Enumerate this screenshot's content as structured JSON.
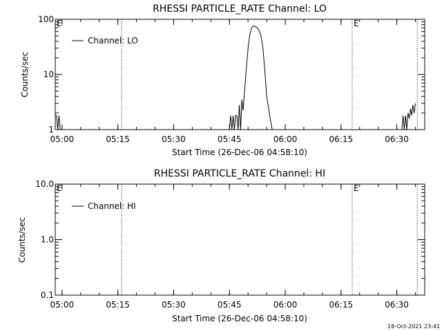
{
  "footer_timestamp": "18-Oct-2021 23:41",
  "chart_data": [
    {
      "type": "line",
      "title": "RHESSI PARTICLE_RATE Channel: LO",
      "xlabel": "Start Time (26-Dec-06 04:58:10)",
      "ylabel": "Counts/sec",
      "yscale": "log",
      "ylim": [
        1,
        100
      ],
      "xlim": [
        "04:58:10",
        "06:37:30"
      ],
      "grid": false,
      "legend_placement": "top-left",
      "x_ticks": [
        "05:00",
        "05:15",
        "05:30",
        "05:45",
        "06:00",
        "06:15",
        "06:30"
      ],
      "y_ticks": [
        "1",
        "10",
        "100"
      ],
      "annotations": [
        {
          "text": "E",
          "x": "04:58:10"
        },
        {
          "text": "E",
          "x": "06:18:00"
        }
      ],
      "vertical_markers": [
        "05:16:00",
        "06:18:00",
        "06:35:30"
      ],
      "series": [
        {
          "name": "Channel: LO",
          "x": [
            "04:58:10",
            "04:58:30",
            "04:58:50",
            "04:59:10",
            "04:59:30",
            "05:45:00",
            "05:45:20",
            "05:45:40",
            "05:46:00",
            "05:46:20",
            "05:46:40",
            "05:47:00",
            "05:47:20",
            "05:47:40",
            "05:48:00",
            "05:48:20",
            "05:48:40",
            "05:49:00",
            "05:49:30",
            "05:50:00",
            "05:50:30",
            "05:51:00",
            "05:51:30",
            "05:52:00",
            "05:52:30",
            "05:53:00",
            "05:53:30",
            "05:54:00",
            "05:54:30",
            "05:55:00",
            "05:55:30",
            "05:56:00",
            "05:56:30",
            "05:57:00",
            "05:57:30",
            "06:31:20",
            "06:31:40",
            "06:32:00",
            "06:32:20",
            "06:32:40",
            "06:33:00",
            "06:33:20",
            "06:33:40",
            "06:34:00",
            "06:34:20",
            "06:34:40",
            "06:35:00"
          ],
          "values": [
            1.8,
            1.8,
            1.0,
            1.8,
            1.0,
            1.0,
            1.8,
            1.0,
            1.8,
            1.0,
            1.8,
            1.8,
            1.0,
            2.8,
            1.0,
            3.5,
            2.2,
            4.5,
            12,
            30,
            55,
            70,
            76,
            74,
            70,
            62,
            50,
            30,
            12,
            4.0,
            2.5,
            1.5,
            1.0,
            1.0,
            1.0,
            1.0,
            1.8,
            1.0,
            1.8,
            1.0,
            2.0,
            1.6,
            2.4,
            1.8,
            2.8,
            2.0,
            3.0
          ]
        }
      ]
    },
    {
      "type": "line",
      "title": "RHESSI PARTICLE_RATE Channel: HI",
      "xlabel": "Start Time (26-Dec-06 04:58:10)",
      "ylabel": "Counts/sec",
      "yscale": "log",
      "ylim": [
        0.1,
        10
      ],
      "xlim": [
        "04:58:10",
        "06:37:30"
      ],
      "grid": false,
      "legend_placement": "top-left",
      "x_ticks": [
        "05:00",
        "05:15",
        "05:30",
        "05:45",
        "06:00",
        "06:15",
        "06:30"
      ],
      "y_ticks": [
        "0.1",
        "1.0",
        "10.0"
      ],
      "annotations": [
        {
          "text": "E",
          "x": "04:58:10"
        },
        {
          "text": "E",
          "x": "06:18:00"
        }
      ],
      "vertical_markers": [
        "05:16:00",
        "06:18:00",
        "06:35:30"
      ],
      "series": [
        {
          "name": "Channel: HI",
          "x": [],
          "values": []
        }
      ]
    }
  ]
}
